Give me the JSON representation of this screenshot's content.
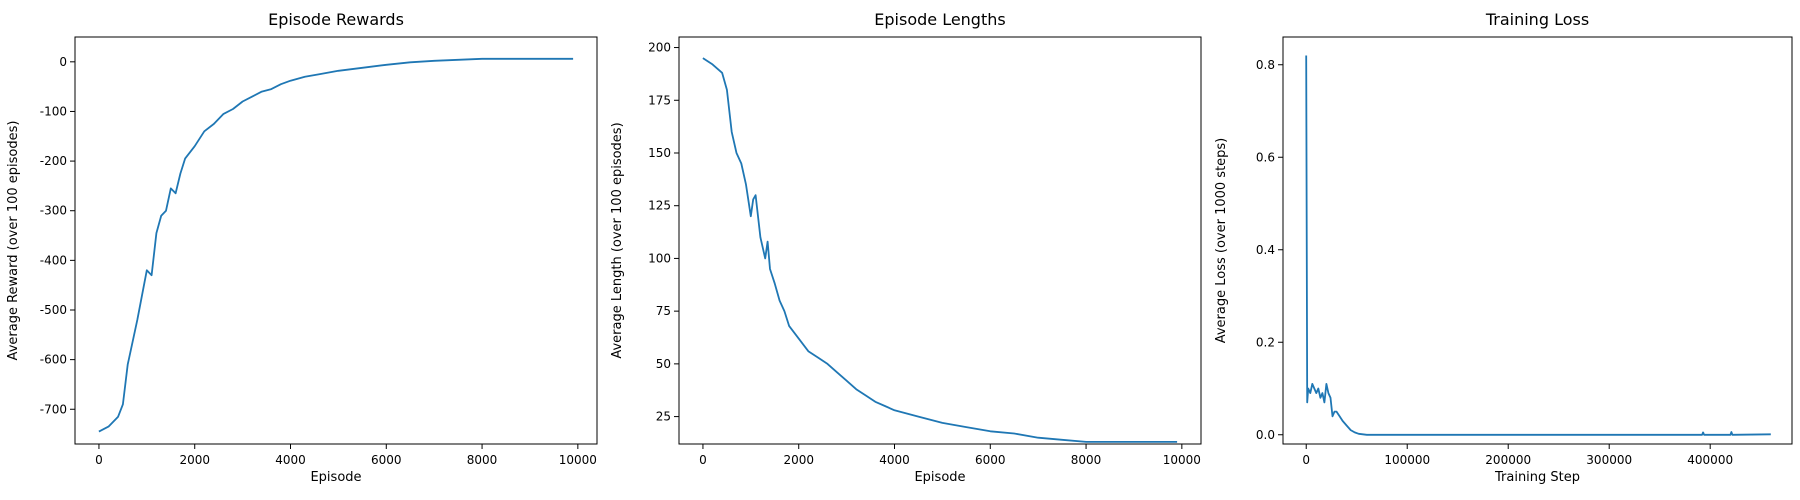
{
  "chart_data": [
    {
      "type": "line",
      "title": "Episode Rewards",
      "xlabel": "Episode",
      "ylabel": "Average Reward (over 100 episodes)",
      "xlim": [
        -500,
        10400
      ],
      "ylim": [
        -770,
        50
      ],
      "xticks": [
        0,
        2000,
        4000,
        6000,
        8000,
        10000
      ],
      "yticks": [
        -700,
        -600,
        -500,
        -400,
        -300,
        -200,
        -100,
        0
      ],
      "grid": false,
      "color": "#1f77b4",
      "series": [
        {
          "x": [
            0,
            200,
            400,
            500,
            600,
            800,
            1000,
            1100,
            1200,
            1300,
            1400,
            1500,
            1600,
            1700,
            1800,
            2000,
            2200,
            2400,
            2600,
            2800,
            3000,
            3200,
            3400,
            3600,
            3800,
            4000,
            4300,
            4600,
            5000,
            5500,
            6000,
            6500,
            7000,
            7500,
            8000,
            8500,
            9000,
            9500,
            9900
          ],
          "y": [
            -745,
            -735,
            -715,
            -690,
            -610,
            -520,
            -420,
            -430,
            -345,
            -310,
            -300,
            -255,
            -265,
            -225,
            -195,
            -170,
            -140,
            -125,
            -105,
            -95,
            -80,
            -70,
            -60,
            -55,
            -45,
            -38,
            -30,
            -25,
            -18,
            -12,
            -6,
            -1,
            2,
            4,
            6,
            6,
            6,
            6,
            6
          ]
        }
      ]
    },
    {
      "type": "line",
      "title": "Episode Lengths",
      "xlabel": "Episode",
      "ylabel": "Average Length (over 100 episodes)",
      "xlim": [
        -500,
        10400
      ],
      "ylim": [
        12,
        205
      ],
      "xticks": [
        0,
        2000,
        4000,
        6000,
        8000,
        10000
      ],
      "yticks": [
        25,
        50,
        75,
        100,
        125,
        150,
        175,
        200
      ],
      "grid": false,
      "color": "#1f77b4",
      "series": [
        {
          "x": [
            0,
            200,
            400,
            500,
            600,
            700,
            800,
            900,
            1000,
            1050,
            1100,
            1200,
            1300,
            1350,
            1400,
            1500,
            1600,
            1700,
            1800,
            2000,
            2200,
            2400,
            2600,
            2800,
            3000,
            3200,
            3400,
            3600,
            3800,
            4000,
            4500,
            5000,
            5500,
            6000,
            6500,
            7000,
            7500,
            8000,
            8500,
            9000,
            9500,
            9900
          ],
          "y": [
            195,
            192,
            188,
            180,
            160,
            150,
            145,
            135,
            120,
            128,
            130,
            110,
            100,
            108,
            95,
            88,
            80,
            75,
            68,
            62,
            56,
            53,
            50,
            46,
            42,
            38,
            35,
            32,
            30,
            28,
            25,
            22,
            20,
            18,
            17,
            15,
            14,
            13,
            13,
            13,
            13,
            13
          ]
        }
      ]
    },
    {
      "type": "line",
      "title": "Training Loss",
      "xlabel": "Training Step",
      "ylabel": "Average Loss (over 1000 steps)",
      "xlim": [
        -23000,
        481000
      ],
      "ylim": [
        -0.02,
        0.86
      ],
      "xticks": [
        0,
        100000,
        200000,
        300000,
        400000
      ],
      "yticks": [
        0.0,
        0.2,
        0.4,
        0.6,
        0.8
      ],
      "grid": false,
      "color": "#1f77b4",
      "series": [
        {
          "x": [
            0,
            1000,
            2000,
            4000,
            6000,
            8000,
            10000,
            12000,
            14000,
            16000,
            18000,
            20000,
            22000,
            24000,
            26000,
            28000,
            30000,
            33000,
            36000,
            40000,
            44000,
            48000,
            52000,
            56000,
            60000,
            100000,
            200000,
            300000,
            392000,
            393000,
            394000,
            420000,
            421000,
            422000,
            460000
          ],
          "y": [
            0.82,
            0.07,
            0.1,
            0.09,
            0.11,
            0.1,
            0.09,
            0.1,
            0.08,
            0.09,
            0.07,
            0.11,
            0.09,
            0.08,
            0.04,
            0.05,
            0.05,
            0.04,
            0.03,
            0.02,
            0.01,
            0.005,
            0.002,
            0.001,
            0.0,
            0.0,
            0.0,
            0.0,
            0.0,
            0.005,
            0.0,
            0.0,
            0.006,
            0.0,
            0.001
          ]
        }
      ]
    }
  ]
}
